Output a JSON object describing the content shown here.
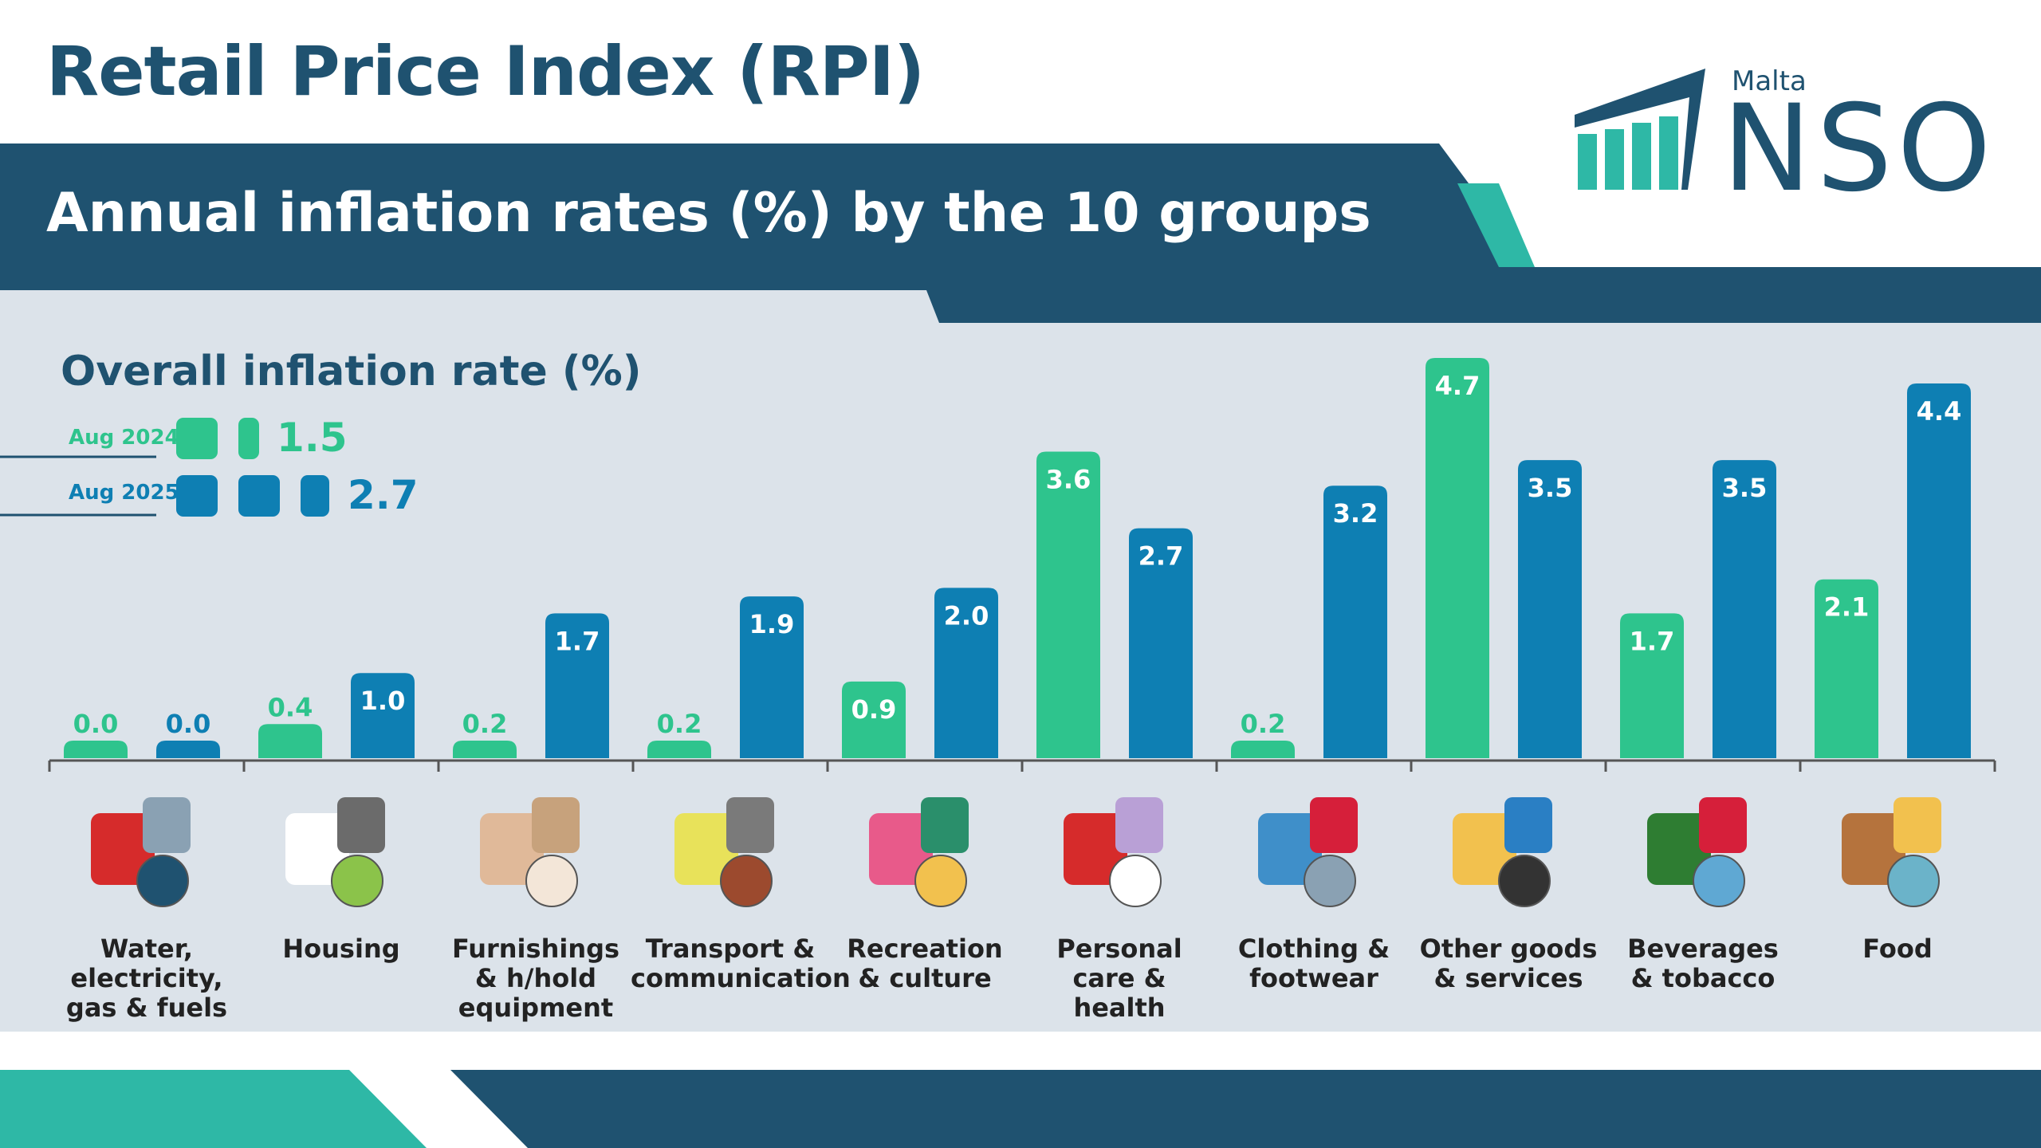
{
  "header": {
    "title": "Retail Price Index (RPI)",
    "subtitle": "Annual inflation rates (%) by the 10 groups"
  },
  "logo": {
    "country": "Malta",
    "name": "NSO"
  },
  "overall": {
    "heading": "Overall inflation rate (%)",
    "items": [
      {
        "label": "Aug 2024",
        "value": "1.5",
        "color": "#2ec48d"
      },
      {
        "label": "Aug 2025",
        "value": "2.7",
        "color": "#0e7fb3"
      }
    ]
  },
  "colors": {
    "green": "#2ec48d",
    "blue": "#0e7fb3",
    "navy": "#1f5270",
    "teal": "#2eb8a6",
    "panel": "#dce3ea"
  },
  "chart_data": {
    "type": "bar",
    "categories": [
      "Water,\nelectricity,\ngas & fuels",
      "Housing",
      "Furnishings\n& h/hold\nequipment",
      "Transport &\ncommunication",
      "Recreation\n& culture",
      "Personal\ncare &\nhealth",
      "Clothing &\nfootwear",
      "Other goods\n& services",
      "Beverages\n& tobacco",
      "Food"
    ],
    "series": [
      {
        "name": "Aug 2024",
        "values": [
          0.0,
          0.4,
          0.2,
          0.2,
          0.9,
          3.6,
          0.2,
          4.7,
          1.7,
          2.1
        ]
      },
      {
        "name": "Aug 2025",
        "values": [
          0.0,
          1.0,
          1.7,
          1.9,
          2.0,
          2.7,
          3.2,
          3.5,
          3.5,
          4.4
        ]
      }
    ],
    "value_labels": {
      "Aug 2024": [
        "0.0",
        "0.4",
        "0.2",
        "0.2",
        "0.9",
        "3.6",
        "0.2",
        "4.7",
        "1.7",
        "2.1"
      ],
      "Aug 2025": [
        "0.0",
        "1.0",
        "1.7",
        "1.9",
        "2.0",
        "2.7",
        "3.2",
        "3.5",
        "3.5",
        "4.4"
      ]
    },
    "icons": [
      "utilities-icon",
      "housing-icon",
      "furniture-icon",
      "transport-icon",
      "recreation-icon",
      "health-icon",
      "clothing-icon",
      "other-goods-icon",
      "beverages-icon",
      "food-icon"
    ],
    "title": "Annual inflation rates (%) by the 10 groups",
    "ylim": [
      0,
      5
    ]
  }
}
